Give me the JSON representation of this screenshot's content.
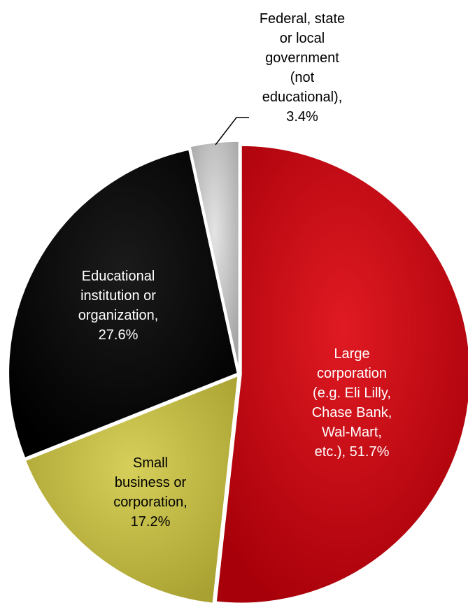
{
  "chart_data": {
    "type": "pie",
    "title": "",
    "start_angle_deg": 0,
    "direction": "clockwise",
    "series": [
      {
        "values": [
          51.7,
          17.2,
          27.6,
          3.4
        ]
      }
    ],
    "slices": [
      {
        "label_lines": [
          "Large",
          "corporation",
          "(e.g. Eli Lilly,",
          "Chase Bank,",
          "Wal-Mart,",
          "etc.), 51.7%"
        ],
        "value": 51.7,
        "color": "#c8000a",
        "label_color": "#ffffff"
      },
      {
        "label_lines": [
          "Small",
          "business or",
          "corporation,",
          "17.2%"
        ],
        "value": 17.2,
        "color": "#c9c24a",
        "label_color": "#000000"
      },
      {
        "label_lines": [
          "Educational",
          "institution or",
          "organization,",
          "27.6%"
        ],
        "value": 27.6,
        "color": "#0a0a0a",
        "label_color": "#ffffff"
      },
      {
        "label_lines": [
          "Federal, state",
          "or local",
          "government",
          "(not",
          "educational),",
          "3.4%"
        ],
        "value": 3.4,
        "color": "#c8c8c8",
        "label_color": "#000000"
      }
    ]
  }
}
